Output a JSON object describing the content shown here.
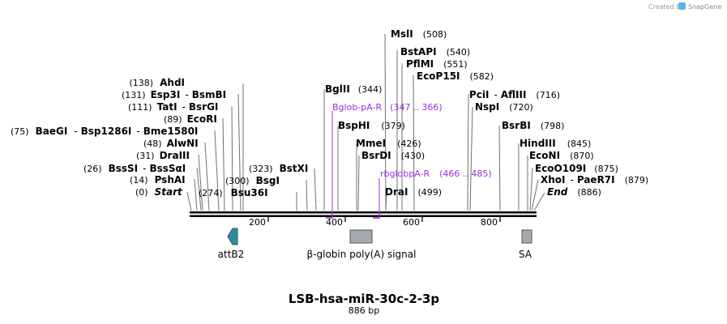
{
  "credit": {
    "prefix": "Created by",
    "brand": "SnapGene"
  },
  "sequence": {
    "name": "LSB-hsa-miR-30c-2-3p",
    "length_label": "886 bp",
    "length": 886
  },
  "ruler": {
    "ticks": [
      {
        "pos": 200,
        "label": "200"
      },
      {
        "pos": 400,
        "label": "400"
      },
      {
        "pos": 600,
        "label": "600"
      },
      {
        "pos": 800,
        "label": "800"
      }
    ]
  },
  "enzymes": {
    "start_site": {
      "name": "Start",
      "pos_label": "(0)"
    },
    "psh_ai": {
      "name": "PshAI",
      "pos_label": "(14)"
    },
    "bss_si": {
      "name": "BssSI",
      "alt": "BssSαI",
      "pos_label": "(26)"
    },
    "dra_iii": {
      "name": "DraIII",
      "pos_label": "(31)"
    },
    "alw_ni": {
      "name": "AlwNI",
      "pos_label": "(48)"
    },
    "bae_gi": {
      "name": "BaeGI",
      "alt1": "Bsp1286I",
      "alt2": "Bme1580I",
      "pos_label": "(75)"
    },
    "eco_ri": {
      "name": "EcoRI",
      "pos_label": "(89)"
    },
    "tat_i": {
      "name": "TatI",
      "alt": "BsrGI",
      "pos_label": "(111)"
    },
    "esp3i": {
      "name": "Esp3I",
      "alt": "BsmBI",
      "pos_label": "(131)"
    },
    "ahd_i": {
      "name": "AhdI",
      "pos_label": "(138)"
    },
    "bsu36i": {
      "name": "Bsu36I",
      "pos_label": "(274)"
    },
    "bsg_i": {
      "name": "BsgI",
      "pos_label": "(300)"
    },
    "bst_xi": {
      "name": "BstXI",
      "pos_label": "(323)"
    },
    "bgl_ii": {
      "name": "BglII",
      "pos_label": "(344)"
    },
    "bsp_hi": {
      "name": "BspHI",
      "pos_label": "(379)"
    },
    "mme_i": {
      "name": "MmeI",
      "pos_label": "(426)"
    },
    "bsr_di": {
      "name": "BsrDI",
      "pos_label": "(430)"
    },
    "dra_i": {
      "name": "DraI",
      "pos_label": "(499)"
    },
    "msl_i": {
      "name": "MslI",
      "pos_label": "(508)"
    },
    "bst_api": {
      "name": "BstAPI",
      "pos_label": "(540)"
    },
    "pfl_mi": {
      "name": "PflMI",
      "pos_label": "(551)"
    },
    "eco_p15i": {
      "name": "EcoP15I",
      "pos_label": "(582)"
    },
    "pci_i": {
      "name": "PciI",
      "alt": "AflIII",
      "pos_label": "(716)"
    },
    "nsp_i": {
      "name": "NspI",
      "pos_label": "(720)"
    },
    "bsr_bi": {
      "name": "BsrBI",
      "pos_label": "(798)"
    },
    "hind_iii": {
      "name": "HindIII",
      "pos_label": "(845)"
    },
    "eco_ni": {
      "name": "EcoNI",
      "pos_label": "(870)"
    },
    "eco_o109i": {
      "name": "EcoO109I",
      "pos_label": "(875)"
    },
    "xho_i": {
      "name": "XhoI",
      "alt": "PaeR7I",
      "pos_label": "(879)"
    },
    "end_site": {
      "name": "End",
      "pos_label": "(886)"
    }
  },
  "primers": [
    {
      "name": "Bglob-pA-R",
      "range": "(347 .. 366)"
    },
    {
      "name": "rbglobpA-R",
      "range": "(466 .. 485)"
    }
  ],
  "features": [
    {
      "name": "attB2",
      "type": "arrow"
    },
    {
      "name": "β-globin poly(A) signal",
      "type": "box"
    },
    {
      "name": "SA",
      "type": "box"
    }
  ],
  "colors": {
    "primer": "#9b30d9",
    "attB2": "#2e8b9a",
    "polyA": "#a6a9ae",
    "backbone": "#000000",
    "leader": "#707070"
  }
}
